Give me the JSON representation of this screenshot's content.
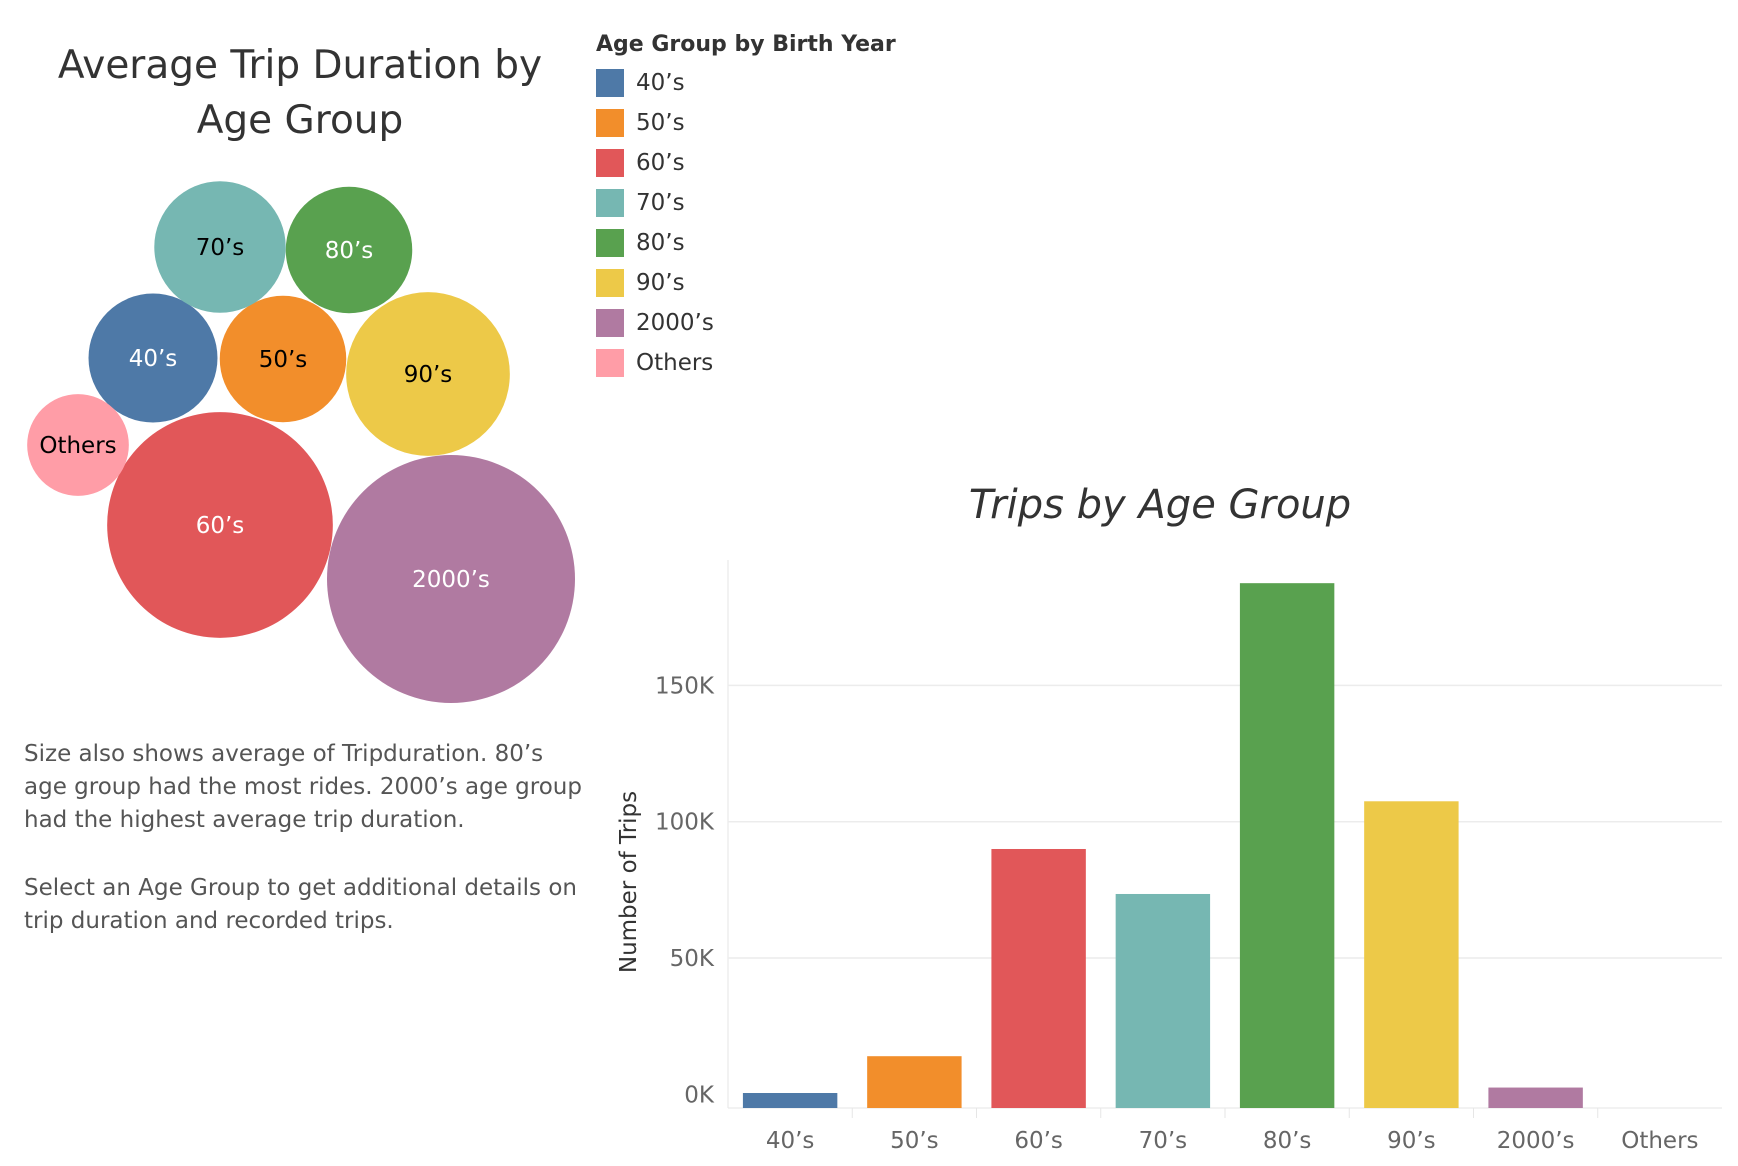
{
  "bubble_chart": {
    "title": "Average Trip Duration by Age Group",
    "notes": [
      "Size also shows average of Tripduration.  80’s age group had the most rides. 2000’s age group had the highest average trip duration.",
      "Select an Age Group to get additional details on trip duration and recorded trips."
    ]
  },
  "legend": {
    "title": "Age Group by Birth Year",
    "items": [
      {
        "label": "40’s",
        "color": "#4e79a7"
      },
      {
        "label": "50’s",
        "color": "#f28e2b"
      },
      {
        "label": "60’s",
        "color": "#e15759"
      },
      {
        "label": "70’s",
        "color": "#76b7b2"
      },
      {
        "label": "80’s",
        "color": "#59a14f"
      },
      {
        "label": "90’s",
        "color": "#edc948"
      },
      {
        "label": "2000’s",
        "color": "#b07aa1"
      },
      {
        "label": "Others",
        "color": "#ff9da7"
      }
    ]
  },
  "chart_data": [
    {
      "type": "bubble",
      "title": "Average Trip Duration by Age Group",
      "size_measure": "average of Tripduration",
      "categories": [
        "40’s",
        "50’s",
        "60’s",
        "70’s",
        "80’s",
        "90’s",
        "2000’s",
        "Others"
      ],
      "relative_size": [
        0.52,
        0.51,
        0.91,
        0.53,
        0.51,
        0.66,
        1.0,
        0.41
      ],
      "label_colors": [
        "#ffffff",
        "#000000",
        "#ffffff",
        "#000000",
        "#ffffff",
        "#000000",
        "#ffffff",
        "#000000"
      ],
      "colors": [
        "#4e79a7",
        "#f28e2b",
        "#e15759",
        "#76b7b2",
        "#59a14f",
        "#edc948",
        "#b07aa1",
        "#ff9da7"
      ]
    },
    {
      "type": "bar",
      "title": "Trips by Age Group",
      "xlabel": "",
      "ylabel": "Number of Trips",
      "categories": [
        "40’s",
        "50’s",
        "60’s",
        "70’s",
        "80’s",
        "90’s",
        "2000’s",
        "Others"
      ],
      "values": [
        500,
        14000,
        90000,
        73500,
        187500,
        107500,
        2500,
        0
      ],
      "colors": [
        "#4e79a7",
        "#f28e2b",
        "#e15759",
        "#76b7b2",
        "#59a14f",
        "#edc948",
        "#b07aa1",
        "#ff9da7"
      ],
      "yticks": [
        0,
        50000,
        100000,
        150000
      ],
      "ytick_labels": [
        "0K",
        "50K",
        "100K",
        "150K"
      ],
      "ylim": [
        -5000,
        196000
      ],
      "grid": true
    }
  ]
}
